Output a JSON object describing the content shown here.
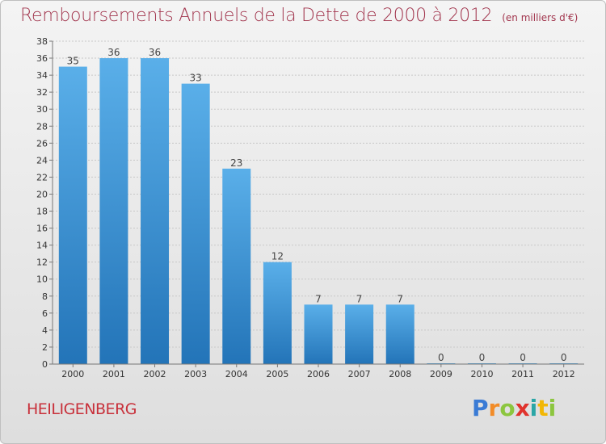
{
  "title": "Remboursements Annuels de la Dette de 2000 à 2012",
  "subtitle": "(en milliers d'€)",
  "commune": "HEILIGENBERG",
  "logo": {
    "letters": [
      "P",
      "r",
      "o",
      "x",
      "i",
      "t",
      "i"
    ],
    "colors": [
      "#3a7bd5",
      "#f28c28",
      "#8cc63f",
      "#e0332d",
      "#2aa6a6",
      "#f2b705",
      "#8cc63f"
    ]
  },
  "colors": {
    "title": "#a2364e",
    "bar_top": "#5aafe9",
    "bar_bottom": "#2374b8",
    "grid": "#c8c8c8"
  },
  "chart_data": {
    "type": "bar",
    "categories": [
      "2000",
      "2001",
      "2002",
      "2003",
      "2004",
      "2005",
      "2006",
      "2007",
      "2008",
      "2009",
      "2010",
      "2011",
      "2012"
    ],
    "values": [
      35,
      36,
      36,
      33,
      23,
      12,
      7,
      7,
      7,
      0,
      0,
      0,
      0
    ],
    "value_labels": [
      "35",
      "36",
      "36",
      "33",
      "23",
      "12",
      "7",
      "7",
      "7",
      "0",
      "0",
      "0",
      "0"
    ],
    "ylim": [
      0,
      38
    ],
    "yticks": [
      0,
      2,
      4,
      6,
      8,
      10,
      12,
      14,
      16,
      18,
      20,
      22,
      24,
      26,
      28,
      30,
      32,
      34,
      36,
      38
    ],
    "grid": true,
    "xlabel": "",
    "ylabel": ""
  }
}
